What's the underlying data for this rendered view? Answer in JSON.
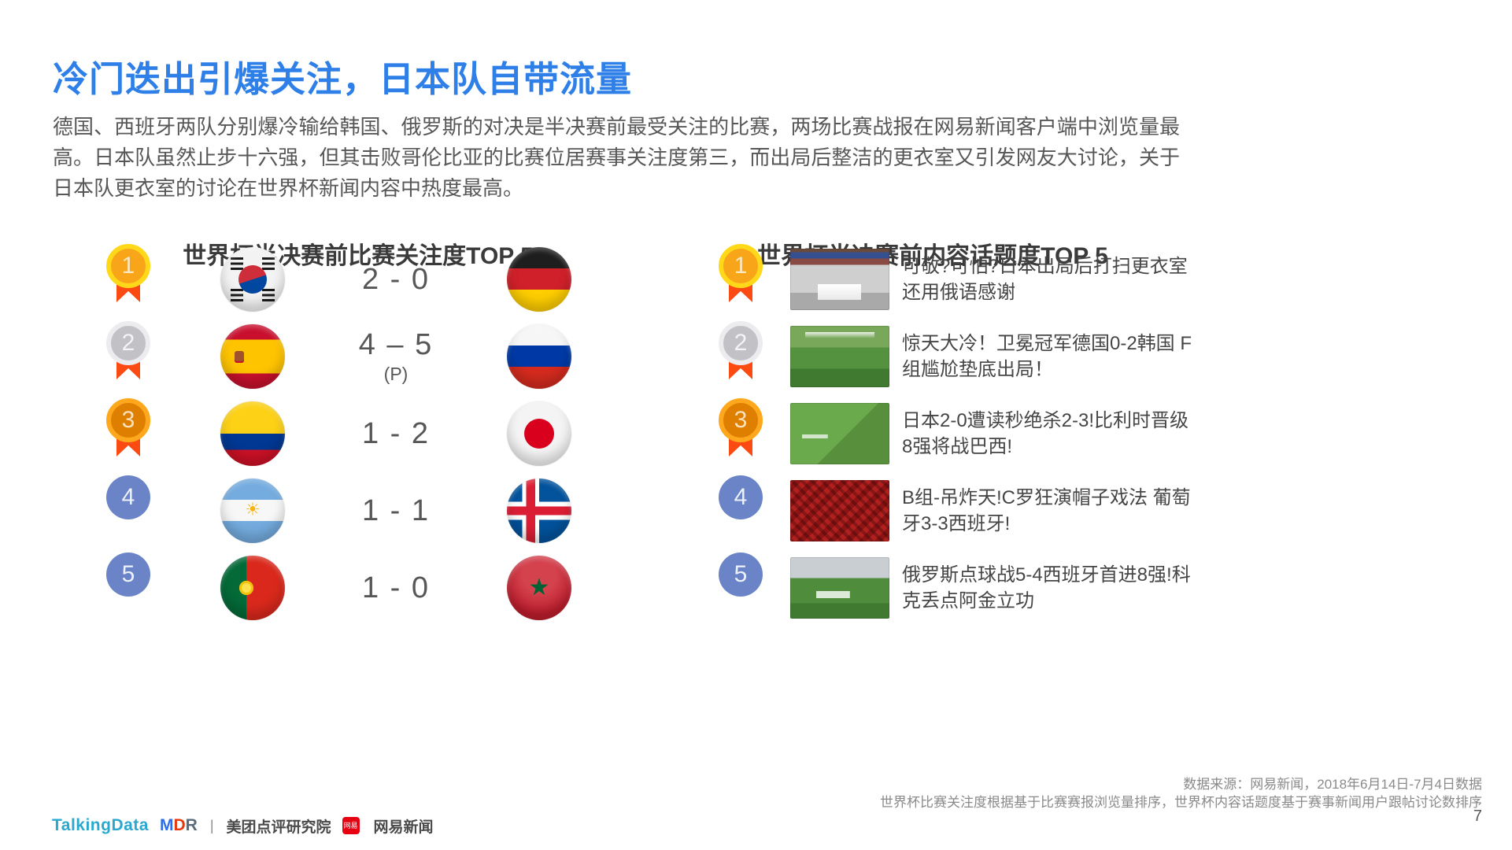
{
  "slide": {
    "title": "冷门迭出引爆关注，日本队自带流量",
    "paragraph": "德国、西班牙两队分别爆冷输给韩国、俄罗斯的对决是半决赛前最受关注的比赛，两场比赛战报在网易新闻客户端中浏览量最高。日本队虽然止步十六强，但其击败哥伦比亚的比赛位居赛事关注度第三，而出局后整洁的更衣室又引发网友大讨论，关于日本队更衣室的讨论在世界杯新闻内容中热度最高。",
    "page_number": "7"
  },
  "colors": {
    "title_blue": "#2E7FE8",
    "rank_plain_blue": "#6B84C8",
    "ribbon_red": "#FB4A12",
    "medal_gold_ring": "#FFD919",
    "medal_gold_fill": "#F9A51A",
    "medal_silver_ring": "#ECECEF",
    "medal_silver_fill": "#C1C1C6",
    "medal_bronze_ring": "#FFA81E",
    "medal_bronze_fill": "#DE7F00"
  },
  "left_panel": {
    "header": "世界杯半决赛前比赛关注度TOP 5",
    "rows": [
      {
        "rank": "1",
        "team_left": "south-korea",
        "score": "2 - 0",
        "score_note": "",
        "team_right": "germany"
      },
      {
        "rank": "2",
        "team_left": "spain",
        "score": "4 – 5",
        "score_note": "(P)",
        "team_right": "russia"
      },
      {
        "rank": "3",
        "team_left": "colombia",
        "score": "1 - 2",
        "score_note": "",
        "team_right": "japan"
      },
      {
        "rank": "4",
        "team_left": "argentina",
        "score": "1 - 1",
        "score_note": "",
        "team_right": "iceland"
      },
      {
        "rank": "5",
        "team_left": "portugal",
        "score": "1 - 0",
        "score_note": "",
        "team_right": "morocco"
      }
    ]
  },
  "right_panel": {
    "header": "世界杯半决赛前内容话题度TOP 5",
    "items": [
      {
        "rank": "1",
        "thumbnail": "japan-locker-room",
        "headline": "可敬?可怕?日本出局后打扫更衣室 还用俄语感谢"
      },
      {
        "rank": "2",
        "thumbnail": "germany-korea-match",
        "headline": "惊天大冷！卫冕冠军德国0-2韩国 F组尴尬垫底出局！"
      },
      {
        "rank": "3",
        "thumbnail": "japan-belgium-match",
        "headline": "日本2-0遭读秒绝杀2-3!比利时晋级8强将战巴西!"
      },
      {
        "rank": "4",
        "thumbnail": "portugal-fans",
        "headline": "B组-吊炸天!C罗狂演帽子戏法 葡萄牙3-3西班牙!"
      },
      {
        "rank": "5",
        "thumbnail": "russia-celebration",
        "headline": "俄罗斯点球战5-4西班牙首进8强!科克丢点阿金立功"
      }
    ]
  },
  "footer": {
    "source_line1": "数据来源：网易新闻，2018年6月14日-7月4日数据",
    "source_line2": "世界杯比赛关注度根据基于比赛赛报浏览量排序，世界杯内容话题度基于赛事新闻用户跟帖讨论数排序",
    "logos": {
      "talkingdata": "TalkingData",
      "mdr_m": "M",
      "mdr_d": "D",
      "mdr_r": "R",
      "meituan": "美团点评研究院",
      "netease_badge": "网易",
      "netease": "网易新闻"
    }
  }
}
